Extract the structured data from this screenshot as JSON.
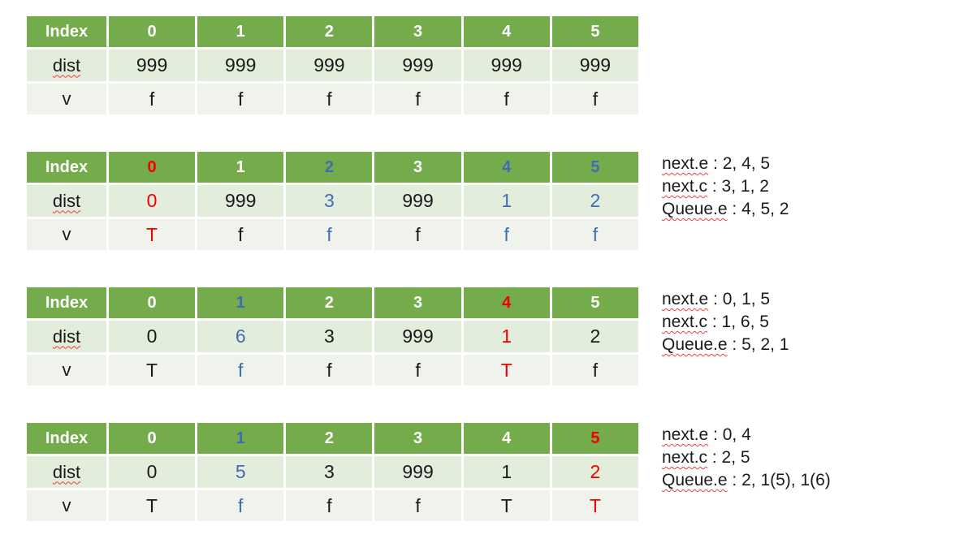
{
  "page": {
    "background": "#ffffff"
  },
  "colors": {
    "header_green": "#74ac4c",
    "dist_row_band": "#e3eddb",
    "v_row_band": "#eff3ec",
    "red": "#f20000",
    "blue": "#3f6db5",
    "white": "#ffffff",
    "black": "#1a1a1a"
  },
  "tables": [
    {
      "name": "state-initial",
      "header_label": "Index",
      "header_cells": [
        {
          "text": "0",
          "color": "white"
        },
        {
          "text": "1",
          "color": "white"
        },
        {
          "text": "2",
          "color": "white"
        },
        {
          "text": "3",
          "color": "white"
        },
        {
          "text": "4",
          "color": "white"
        },
        {
          "text": "5",
          "color": "white"
        }
      ],
      "dist_label": "dist",
      "dist_cells": [
        {
          "text": "999",
          "color": "black"
        },
        {
          "text": "999",
          "color": "black"
        },
        {
          "text": "999",
          "color": "black"
        },
        {
          "text": "999",
          "color": "black"
        },
        {
          "text": "999",
          "color": "black"
        },
        {
          "text": "999",
          "color": "black"
        }
      ],
      "v_label": "v",
      "v_cells": [
        {
          "text": "f",
          "color": "black"
        },
        {
          "text": "f",
          "color": "black"
        },
        {
          "text": "f",
          "color": "black"
        },
        {
          "text": "f",
          "color": "black"
        },
        {
          "text": "f",
          "color": "black"
        },
        {
          "text": "f",
          "color": "black"
        }
      ],
      "notes": []
    },
    {
      "name": "state-step-1",
      "header_label": "Index",
      "header_cells": [
        {
          "text": "0",
          "color": "red"
        },
        {
          "text": "1",
          "color": "white"
        },
        {
          "text": "2",
          "color": "blue"
        },
        {
          "text": "3",
          "color": "white"
        },
        {
          "text": "4",
          "color": "blue"
        },
        {
          "text": "5",
          "color": "blue"
        }
      ],
      "dist_label": "dist",
      "dist_cells": [
        {
          "text": "0",
          "color": "red"
        },
        {
          "text": "999",
          "color": "black"
        },
        {
          "text": "3",
          "color": "blue"
        },
        {
          "text": "999",
          "color": "black"
        },
        {
          "text": "1",
          "color": "blue"
        },
        {
          "text": "2",
          "color": "blue"
        }
      ],
      "v_label": "v",
      "v_cells": [
        {
          "text": "T",
          "color": "red"
        },
        {
          "text": "f",
          "color": "black"
        },
        {
          "text": "f",
          "color": "blue"
        },
        {
          "text": "f",
          "color": "black"
        },
        {
          "text": "f",
          "color": "blue"
        },
        {
          "text": "f",
          "color": "blue"
        }
      ],
      "notes": [
        {
          "label": "next.e",
          "values": "2, 4, 5"
        },
        {
          "label": "next.c",
          "values": "3, 1, 2"
        },
        {
          "label": "Queue.e",
          "values": "4, 5, 2"
        }
      ]
    },
    {
      "name": "state-step-2",
      "header_label": "Index",
      "header_cells": [
        {
          "text": "0",
          "color": "white"
        },
        {
          "text": "1",
          "color": "blue"
        },
        {
          "text": "2",
          "color": "white"
        },
        {
          "text": "3",
          "color": "white"
        },
        {
          "text": "4",
          "color": "red"
        },
        {
          "text": "5",
          "color": "white"
        }
      ],
      "dist_label": "dist",
      "dist_cells": [
        {
          "text": "0",
          "color": "black"
        },
        {
          "text": "6",
          "color": "blue"
        },
        {
          "text": "3",
          "color": "black"
        },
        {
          "text": "999",
          "color": "black"
        },
        {
          "text": "1",
          "color": "red"
        },
        {
          "text": "2",
          "color": "black"
        }
      ],
      "v_label": "v",
      "v_cells": [
        {
          "text": "T",
          "color": "black"
        },
        {
          "text": "f",
          "color": "blue"
        },
        {
          "text": "f",
          "color": "black"
        },
        {
          "text": "f",
          "color": "black"
        },
        {
          "text": "T",
          "color": "red"
        },
        {
          "text": "f",
          "color": "black"
        }
      ],
      "notes": [
        {
          "label": "next.e",
          "values": "0, 1, 5"
        },
        {
          "label": "next.c",
          "values": "1, 6, 5"
        },
        {
          "label": "Queue.e",
          "values": "5, 2, 1"
        }
      ]
    },
    {
      "name": "state-step-3",
      "header_label": "Index",
      "header_cells": [
        {
          "text": "0",
          "color": "white"
        },
        {
          "text": "1",
          "color": "blue"
        },
        {
          "text": "2",
          "color": "white"
        },
        {
          "text": "3",
          "color": "white"
        },
        {
          "text": "4",
          "color": "white"
        },
        {
          "text": "5",
          "color": "red"
        }
      ],
      "dist_label": "dist",
      "dist_cells": [
        {
          "text": "0",
          "color": "black"
        },
        {
          "text": "5",
          "color": "blue"
        },
        {
          "text": "3",
          "color": "black"
        },
        {
          "text": "999",
          "color": "black"
        },
        {
          "text": "1",
          "color": "black"
        },
        {
          "text": "2",
          "color": "red"
        }
      ],
      "v_label": "v",
      "v_cells": [
        {
          "text": "T",
          "color": "black"
        },
        {
          "text": "f",
          "color": "blue"
        },
        {
          "text": "f",
          "color": "black"
        },
        {
          "text": "f",
          "color": "black"
        },
        {
          "text": "T",
          "color": "black"
        },
        {
          "text": "T",
          "color": "red"
        }
      ],
      "notes": [
        {
          "label": "next.e",
          "values": "0, 4"
        },
        {
          "label": "next.c",
          "values": "2, 5"
        },
        {
          "label": "Queue.e",
          "values": "2, 1(5), 1(6)"
        }
      ]
    }
  ],
  "note_separator": " : "
}
